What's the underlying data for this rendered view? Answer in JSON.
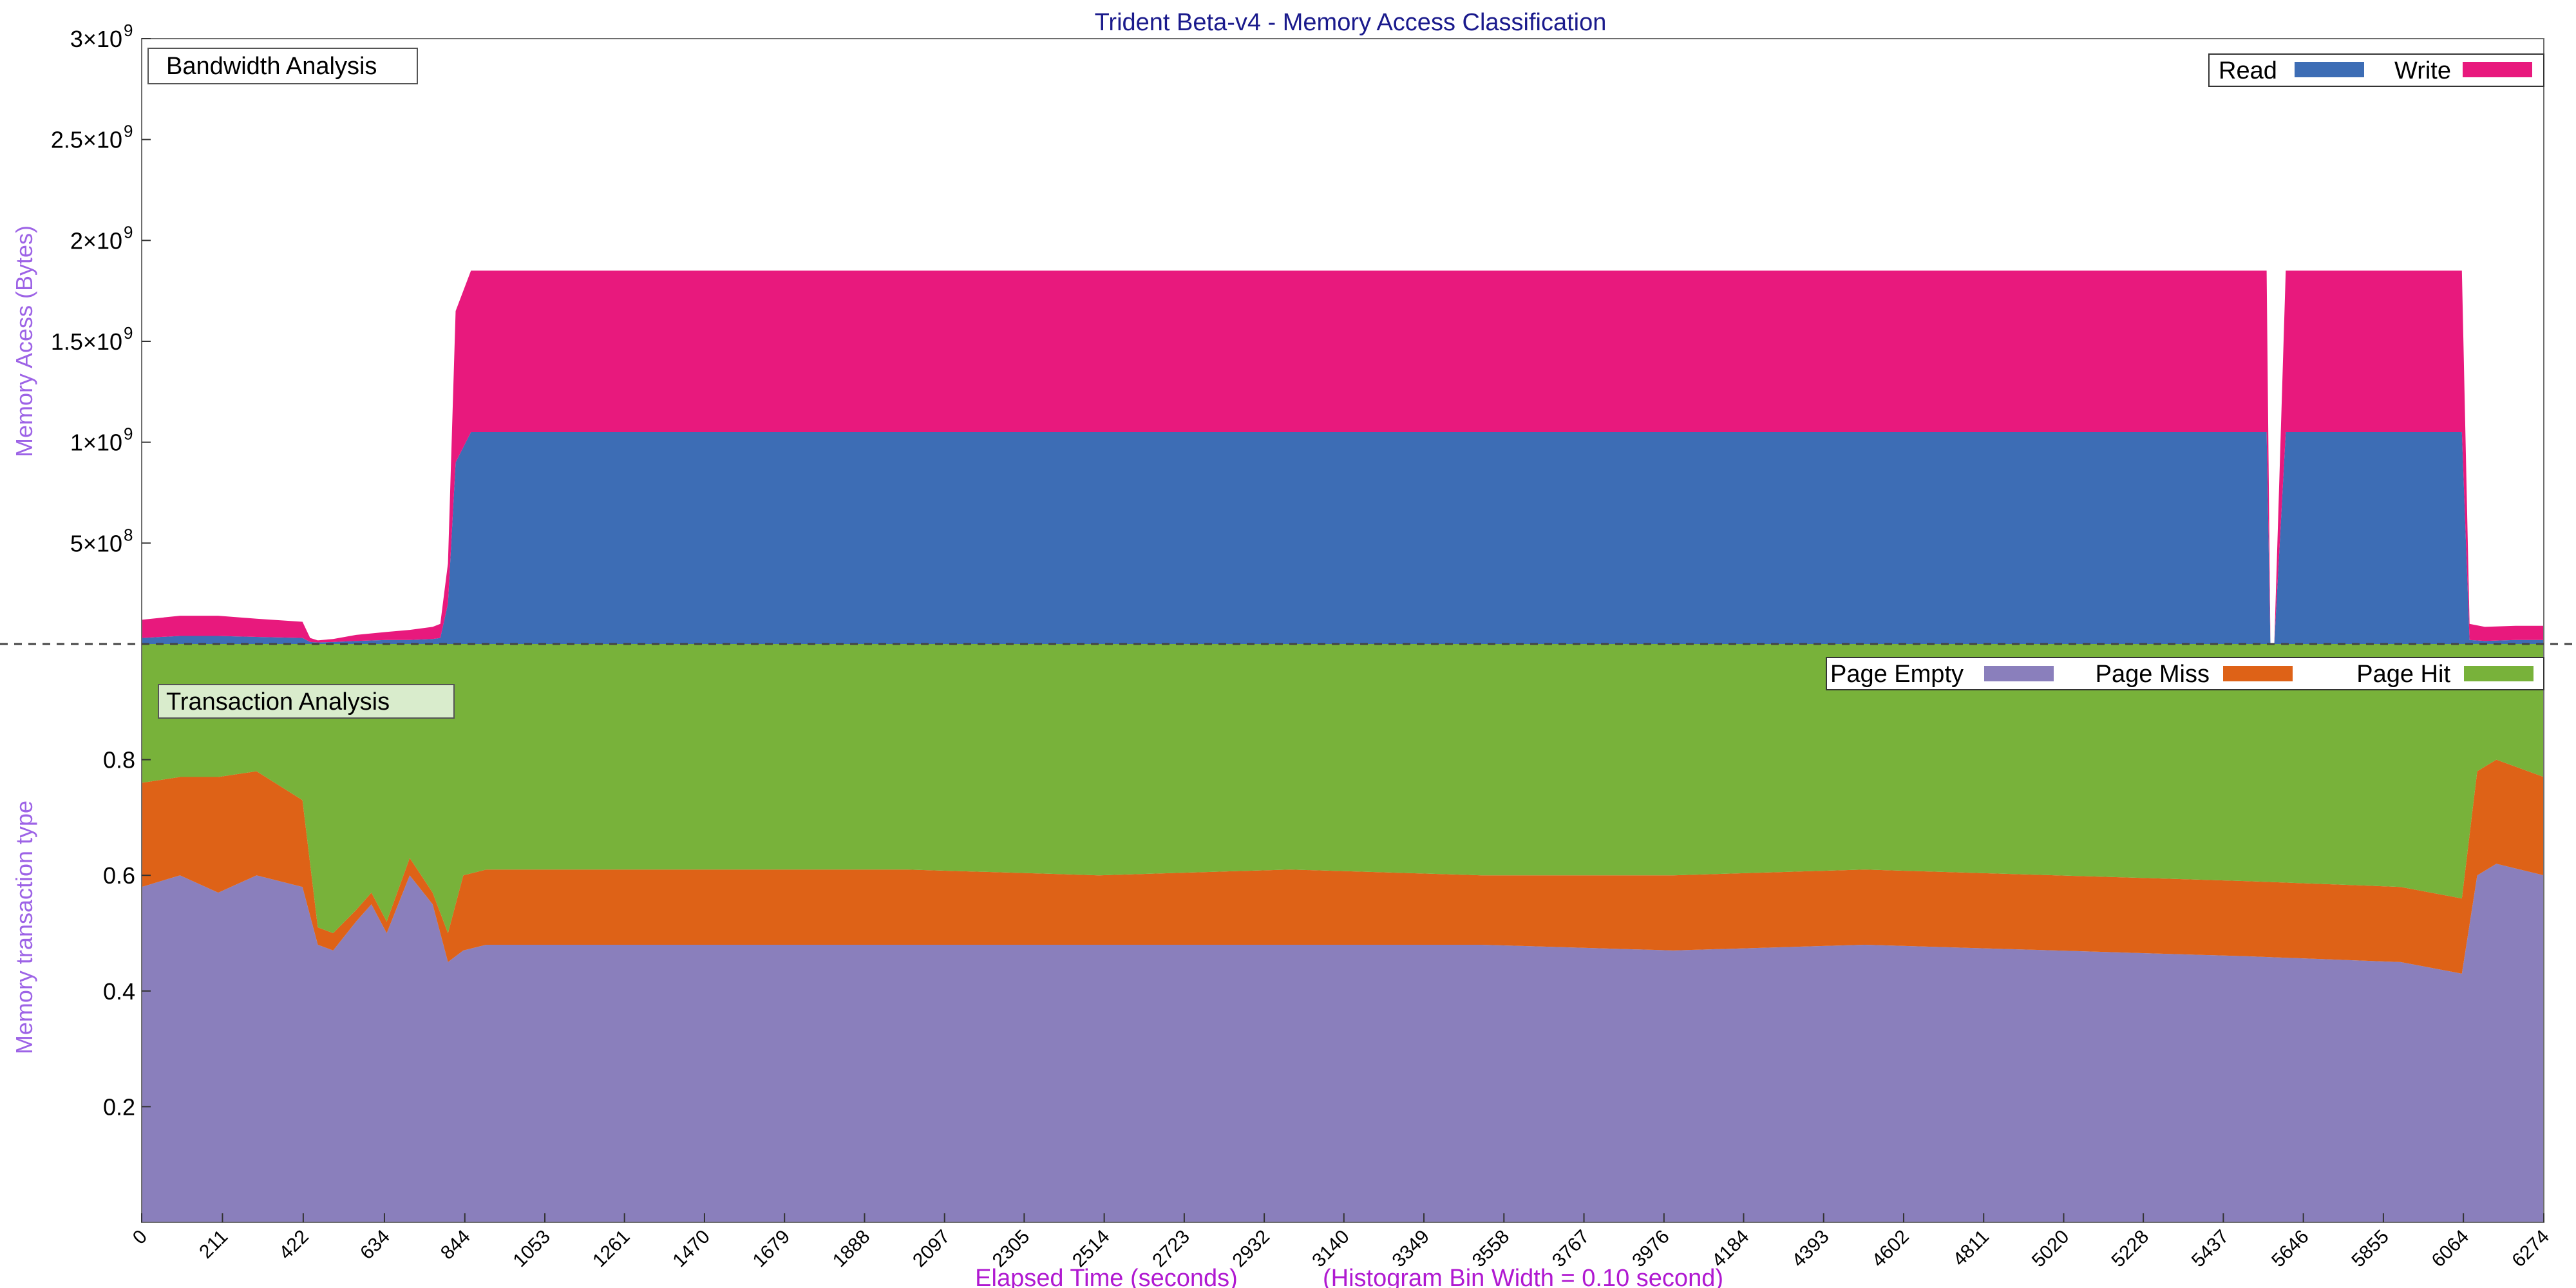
{
  "chart_data": [
    {
      "type": "area",
      "panel": "top",
      "title": "Trident Beta-v4 - Memory Access Classification",
      "box_label": "Bandwidth Analysis",
      "ylabel": "Memory Acess (Bytes)",
      "ylim": [
        0,
        3000000000
      ],
      "ytick_mantissas": [
        "5×10",
        "1×10",
        "1.5×10",
        "2×10",
        "2.5×10",
        "3×10"
      ],
      "ytick_exponents": [
        "8",
        "9",
        "9",
        "9",
        "9",
        "9"
      ],
      "ytick_values": [
        500000000,
        1000000000,
        1500000000,
        2000000000,
        2500000000,
        3000000000
      ],
      "legend_position": "top-right",
      "grid": false,
      "stacked": true,
      "series": [
        {
          "name": "Read",
          "color": "#3d6db5",
          "x": [
            0,
            100,
            200,
            300,
            420,
            440,
            460,
            500,
            560,
            640,
            700,
            760,
            780,
            800,
            820,
            860,
            1000,
            1500,
            2000,
            2500,
            3000,
            3500,
            4000,
            4500,
            5000,
            5500,
            5550,
            5560,
            5570,
            5600,
            6000,
            6060,
            6080,
            6120,
            6200,
            6274
          ],
          "values": [
            30000000,
            40000000,
            40000000,
            35000000,
            30000000,
            10000000,
            8000000,
            10000000,
            15000000,
            20000000,
            20000000,
            25000000,
            30000000,
            200000000,
            900000000,
            1050000000,
            1050000000,
            1050000000,
            1050000000,
            1050000000,
            1050000000,
            1050000000,
            1050000000,
            1050000000,
            1050000000,
            1050000000,
            1050000000,
            0,
            0,
            1050000000,
            1050000000,
            1050000000,
            20000000,
            15000000,
            20000000,
            20000000
          ]
        },
        {
          "name": "Write",
          "color": "#e8197d",
          "x": [
            0,
            100,
            200,
            300,
            420,
            440,
            460,
            500,
            560,
            640,
            700,
            760,
            780,
            800,
            820,
            860,
            1000,
            1500,
            2000,
            2500,
            3000,
            3500,
            4000,
            4500,
            5000,
            5500,
            5550,
            5560,
            5570,
            5600,
            6000,
            6060,
            6080,
            6120,
            6200,
            6274
          ],
          "values": [
            90000000,
            100000000,
            100000000,
            90000000,
            80000000,
            20000000,
            10000000,
            15000000,
            30000000,
            40000000,
            50000000,
            60000000,
            70000000,
            200000000,
            750000000,
            800000000,
            800000000,
            800000000,
            800000000,
            800000000,
            800000000,
            800000000,
            800000000,
            800000000,
            800000000,
            800000000,
            800000000,
            0,
            0,
            800000000,
            800000000,
            800000000,
            80000000,
            70000000,
            70000000,
            70000000
          ]
        }
      ]
    },
    {
      "type": "area",
      "panel": "bottom",
      "box_label": "Transaction Analysis",
      "ylabel": "Memory transaction type",
      "xlabel": "Elapsed Time (seconds)",
      "xlabel_note": "(Histogram Bin Width = 0.10 second)",
      "xlim": [
        0,
        6274
      ],
      "xticks": [
        0,
        211,
        422,
        634,
        844,
        1053,
        1261,
        1470,
        1679,
        1888,
        2097,
        2305,
        2514,
        2723,
        2932,
        3140,
        3349,
        3558,
        3767,
        3976,
        4184,
        4393,
        4602,
        4811,
        5020,
        5228,
        5437,
        5646,
        5855,
        6064,
        6274
      ],
      "xtick_labels": [
        "0",
        "211",
        "422",
        "634",
        "844",
        "1053",
        "1261",
        "1470",
        "1679",
        "1888",
        "2097",
        "2305",
        "2514",
        "2723",
        "2932",
        "3140",
        "3349",
        "3558",
        "3767",
        "3976",
        "4184",
        "4393",
        "4602",
        "4811",
        "5020",
        "5228",
        "5437",
        "5646",
        "5855",
        "6064",
        "6274"
      ],
      "ylim": [
        0,
        1
      ],
      "yticks": [
        0.2,
        0.4,
        0.6,
        0.8
      ],
      "ytick_labels": [
        "0.2",
        "0.4",
        "0.6",
        "0.8"
      ],
      "legend_position": "top-right",
      "grid": false,
      "stacked": true,
      "series": [
        {
          "name": "Page Empty",
          "color": "#8a7fbc",
          "x": [
            0,
            100,
            200,
            300,
            420,
            460,
            500,
            560,
            600,
            640,
            700,
            760,
            800,
            840,
            900,
            1500,
            2000,
            2500,
            3000,
            3500,
            4000,
            4500,
            5000,
            5500,
            5900,
            6060,
            6100,
            6150,
            6274
          ],
          "values": [
            0.58,
            0.6,
            0.57,
            0.6,
            0.58,
            0.48,
            0.47,
            0.52,
            0.55,
            0.5,
            0.6,
            0.55,
            0.45,
            0.47,
            0.48,
            0.48,
            0.48,
            0.48,
            0.48,
            0.48,
            0.47,
            0.48,
            0.47,
            0.46,
            0.45,
            0.43,
            0.6,
            0.62,
            0.6
          ]
        },
        {
          "name": "Page Miss",
          "color": "#de6217",
          "x": [
            0,
            100,
            200,
            300,
            420,
            460,
            500,
            560,
            600,
            640,
            700,
            760,
            800,
            840,
            900,
            1500,
            2000,
            2500,
            3000,
            3500,
            4000,
            4500,
            5000,
            5500,
            5900,
            6060,
            6100,
            6150,
            6274
          ],
          "values": [
            0.18,
            0.17,
            0.2,
            0.18,
            0.15,
            0.03,
            0.03,
            0.02,
            0.02,
            0.02,
            0.03,
            0.02,
            0.05,
            0.13,
            0.13,
            0.13,
            0.13,
            0.12,
            0.13,
            0.12,
            0.13,
            0.13,
            0.13,
            0.13,
            0.13,
            0.13,
            0.18,
            0.18,
            0.17
          ]
        },
        {
          "name": "Page Hit",
          "color": "#78b23a",
          "x": [
            0,
            100,
            200,
            300,
            420,
            460,
            500,
            560,
            600,
            640,
            700,
            760,
            800,
            840,
            900,
            1500,
            2000,
            2500,
            3000,
            3500,
            4000,
            4500,
            5000,
            5500,
            5900,
            6060,
            6100,
            6150,
            6274
          ],
          "values": [
            0.24,
            0.23,
            0.23,
            0.22,
            0.27,
            0.49,
            0.5,
            0.46,
            0.43,
            0.48,
            0.37,
            0.43,
            0.5,
            0.4,
            0.39,
            0.39,
            0.39,
            0.4,
            0.39,
            0.4,
            0.4,
            0.39,
            0.4,
            0.41,
            0.42,
            0.44,
            0.22,
            0.2,
            0.23
          ]
        }
      ]
    }
  ]
}
